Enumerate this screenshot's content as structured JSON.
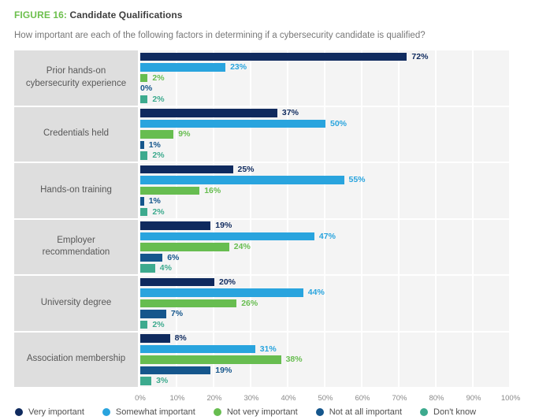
{
  "header": {
    "figure_label": "FIGURE 16:",
    "figure_title": "Candidate Qualifications",
    "subtitle": "How important are each of the following factors in determining if a cybersecurity candidate is qualified?"
  },
  "colors": {
    "figure_label_green": "#6cbf4c",
    "plot_background": "#f4f4f4",
    "category_box": "#dedede",
    "gridline": "#ffffff"
  },
  "chart_data": {
    "type": "bar",
    "orientation": "horizontal",
    "title": "Candidate Qualifications",
    "categories": [
      "Prior hands-on cybersecurity experience",
      "Credentials held",
      "Hands-on training",
      "Employer recommendation",
      "University degree",
      "Association membership"
    ],
    "series": [
      {
        "name": "Very important",
        "color": "#0f2a5e",
        "values": [
          72,
          37,
          25,
          19,
          20,
          8
        ]
      },
      {
        "name": "Somewhat important",
        "color": "#29a4de",
        "values": [
          23,
          50,
          55,
          47,
          44,
          31
        ]
      },
      {
        "name": "Not very important",
        "color": "#67bd50",
        "values": [
          2,
          9,
          16,
          24,
          26,
          38
        ]
      },
      {
        "name": "Not at all important",
        "color": "#15568c",
        "values": [
          0,
          1,
          1,
          6,
          7,
          19
        ]
      },
      {
        "name": "Don't know",
        "color": "#3daa8e",
        "values": [
          2,
          2,
          2,
          4,
          2,
          3
        ]
      }
    ],
    "value_suffix": "%",
    "xlim": [
      0,
      100
    ],
    "x_ticks": [
      "0%",
      "10%",
      "20%",
      "30%",
      "40%",
      "50%",
      "60%",
      "70%",
      "80%",
      "90%",
      "100%"
    ],
    "grid": true,
    "legend_position": "bottom"
  }
}
